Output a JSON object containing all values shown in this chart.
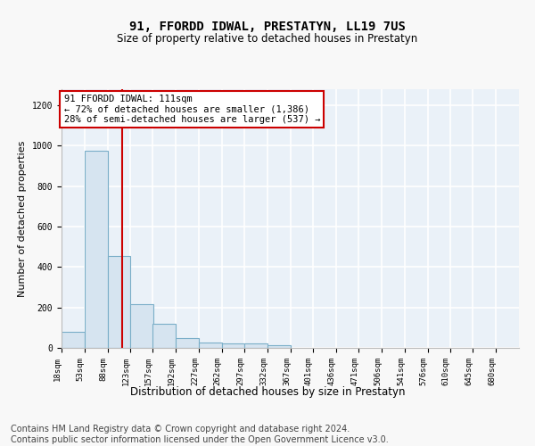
{
  "title": "91, FFORDD IDWAL, PRESTATYN, LL19 7US",
  "subtitle": "Size of property relative to detached houses in Prestatyn",
  "xlabel": "Distribution of detached houses by size in Prestatyn",
  "ylabel": "Number of detached properties",
  "bar_color": "#d6e4f0",
  "bar_edge_color": "#7aaec8",
  "background_color": "#eaf1f8",
  "grid_color": "#ffffff",
  "vline_x": 111,
  "vline_color": "#cc0000",
  "annotation_text": "91 FFORDD IDWAL: 111sqm\n← 72% of detached houses are smaller (1,386)\n28% of semi-detached houses are larger (537) →",
  "annotation_box_color": "#ffffff",
  "annotation_box_edge": "#cc0000",
  "bin_edges": [
    18,
    53,
    88,
    123,
    157,
    192,
    227,
    262,
    297,
    332,
    367,
    401,
    436,
    471,
    506,
    541,
    576,
    610,
    645,
    680,
    715
  ],
  "bar_heights": [
    80,
    975,
    455,
    215,
    120,
    47,
    25,
    22,
    20,
    12,
    0,
    0,
    0,
    0,
    0,
    0,
    0,
    0,
    0,
    0
  ],
  "ylim": [
    0,
    1280
  ],
  "yticks": [
    0,
    200,
    400,
    600,
    800,
    1000,
    1200
  ],
  "footer": "Contains HM Land Registry data © Crown copyright and database right 2024.\nContains public sector information licensed under the Open Government Licence v3.0.",
  "footer_fontsize": 7.0,
  "title_fontsize": 10,
  "subtitle_fontsize": 8.5,
  "ylabel_fontsize": 8,
  "xlabel_fontsize": 8.5,
  "tick_fontsize": 6.5
}
